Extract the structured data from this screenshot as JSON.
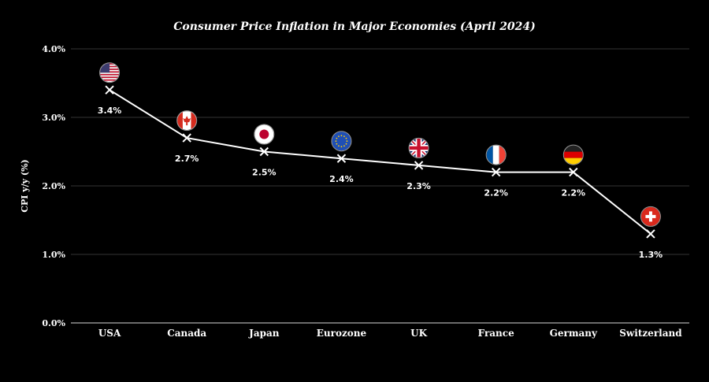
{
  "chart_data": {
    "type": "line",
    "title": "Consumer Price Inflation in Major Economies (April 2024)",
    "xlabel": "",
    "ylabel": "CPI y/y (%)",
    "ylim": [
      0,
      4
    ],
    "yticks": [
      "0.0%",
      "1.0%",
      "2.0%",
      "3.0%",
      "4.0%"
    ],
    "grid": true,
    "categories": [
      "USA",
      "Canada",
      "Japan",
      "Eurozone",
      "UK",
      "France",
      "Germany",
      "Switzerland"
    ],
    "values": [
      3.4,
      2.7,
      2.5,
      2.4,
      2.3,
      2.2,
      2.2,
      1.3
    ],
    "data_labels": [
      "3.4%",
      "2.7%",
      "2.5%",
      "2.4%",
      "2.3%",
      "2.2%",
      "2.2%",
      "1.3%"
    ],
    "flag_icons": [
      "flag-usa-icon",
      "flag-canada-icon",
      "flag-japan-icon",
      "flag-eu-icon",
      "flag-uk-icon",
      "flag-france-icon",
      "flag-germany-icon",
      "flag-switzerland-icon"
    ],
    "colors": {
      "background": "#000000",
      "line": "#ffffff",
      "grid": "#333333",
      "text": "#ffffff"
    }
  }
}
